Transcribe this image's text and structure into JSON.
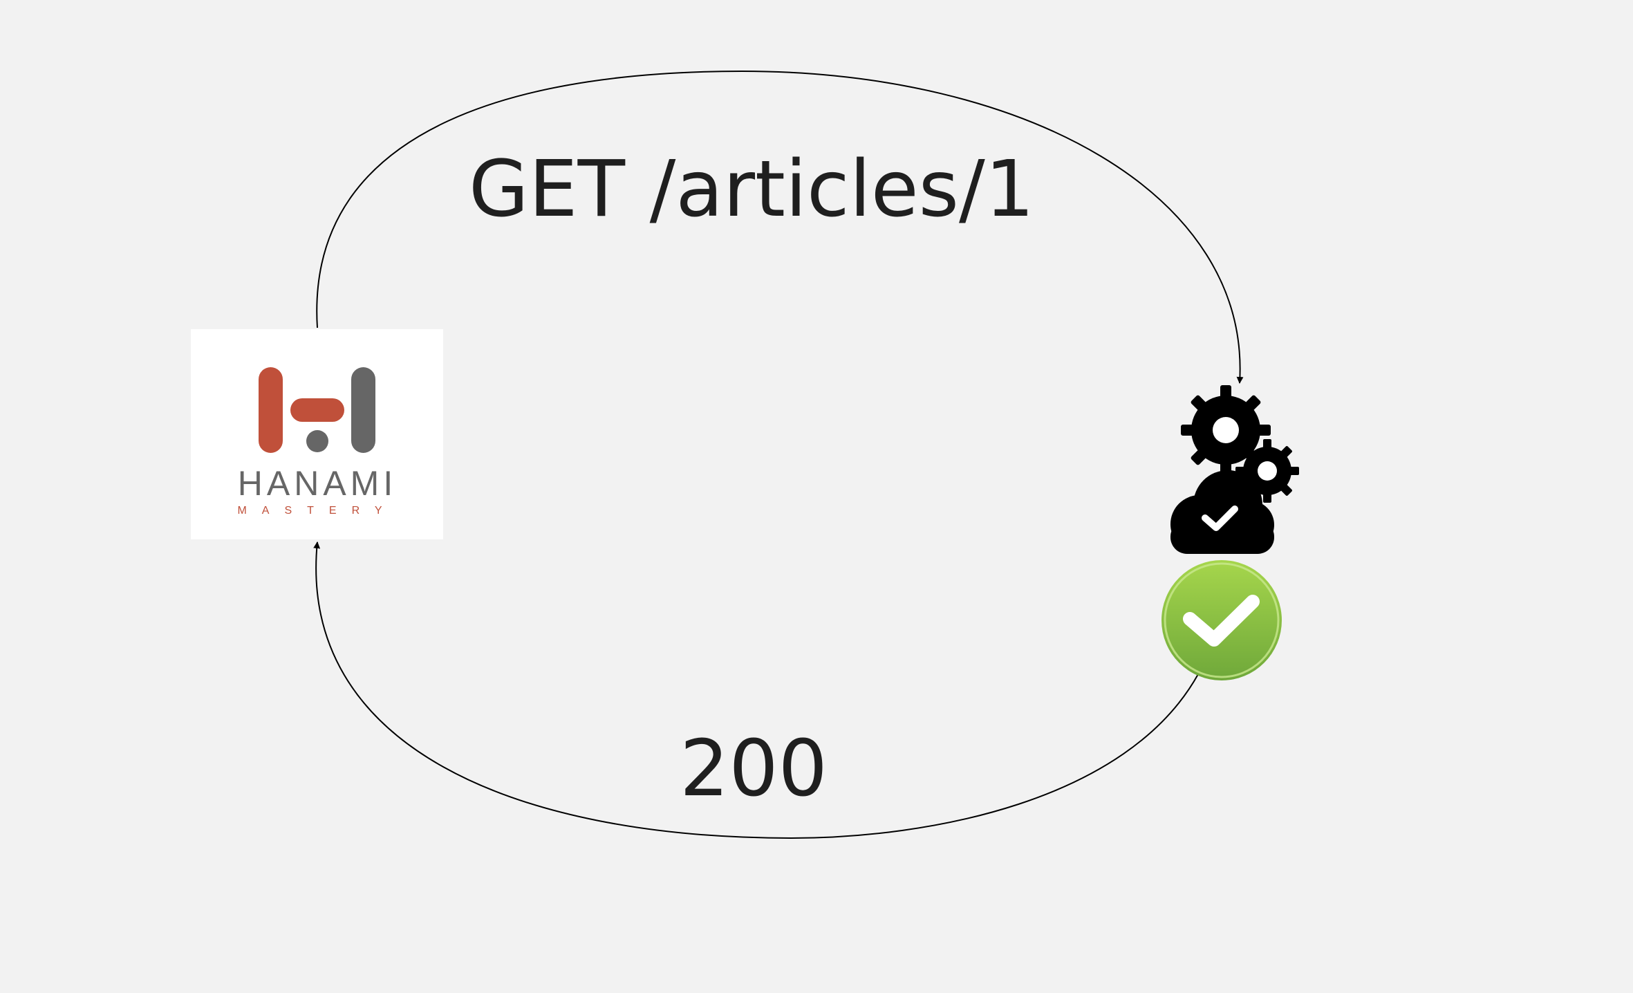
{
  "colors": {
    "background": "#f2f2f2",
    "brand_red": "#c0503a",
    "brand_gray": "#666666",
    "success_green": "#8cc63f",
    "icon_black": "#000000"
  },
  "request": {
    "label": "GET /articles/1"
  },
  "response": {
    "label": "200"
  },
  "client": {
    "icon": "hanami-mastery-logo",
    "logo_word": "HANAMI",
    "logo_subword": "MASTERY"
  },
  "server": {
    "icon": "cloud-gears-icon",
    "status_icon": "green-checkmark-icon"
  }
}
